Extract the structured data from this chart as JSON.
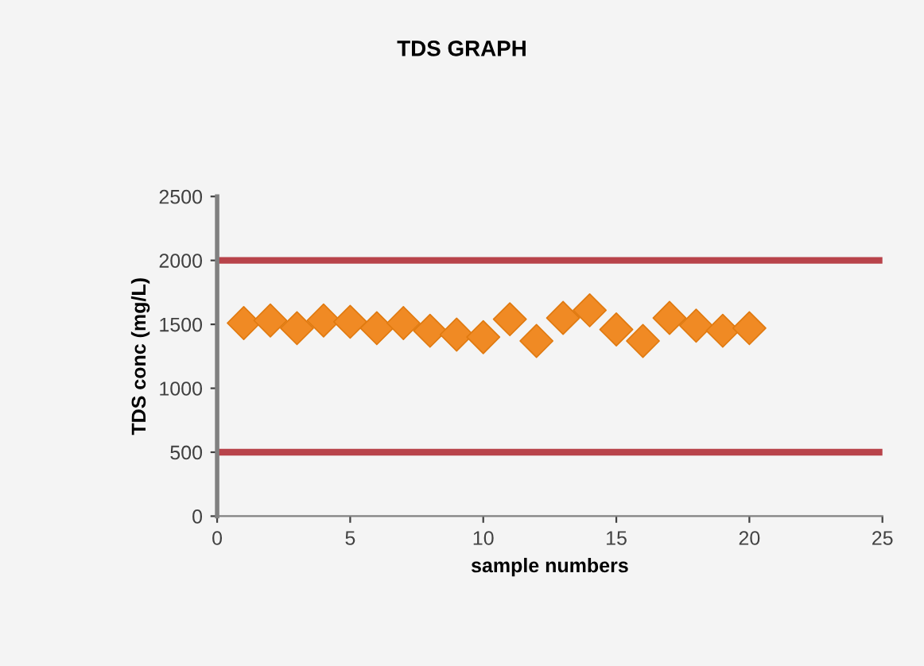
{
  "chart_data": {
    "type": "scatter",
    "title": "TDS GRAPH",
    "xlabel": "sample numbers",
    "ylabel": "TDS conc (mg/L)",
    "x": [
      1,
      2,
      3,
      4,
      5,
      6,
      7,
      8,
      9,
      10,
      11,
      12,
      13,
      14,
      15,
      16,
      17,
      18,
      19,
      20
    ],
    "series": [
      {
        "color": "#f08a24",
        "values": [
          1510,
          1530,
          1470,
          1530,
          1520,
          1470,
          1510,
          1450,
          1420,
          1400,
          1540,
          1370,
          1550,
          1610,
          1460,
          1370,
          1550,
          1490,
          1450,
          1470
        ]
      }
    ],
    "marker": "diamond",
    "xlim": [
      0,
      25
    ],
    "xticks": [
      0,
      5,
      10,
      15,
      20,
      25
    ],
    "ylim": [
      0,
      2500
    ],
    "yticks": [
      0,
      500,
      1000,
      1500,
      2000,
      2500
    ],
    "ref_lines": [
      {
        "axis": "y",
        "value": 2000,
        "color": "#b8434a"
      },
      {
        "axis": "y",
        "value": 500,
        "color": "#b8434a"
      }
    ],
    "grid": false,
    "legend": false
  }
}
